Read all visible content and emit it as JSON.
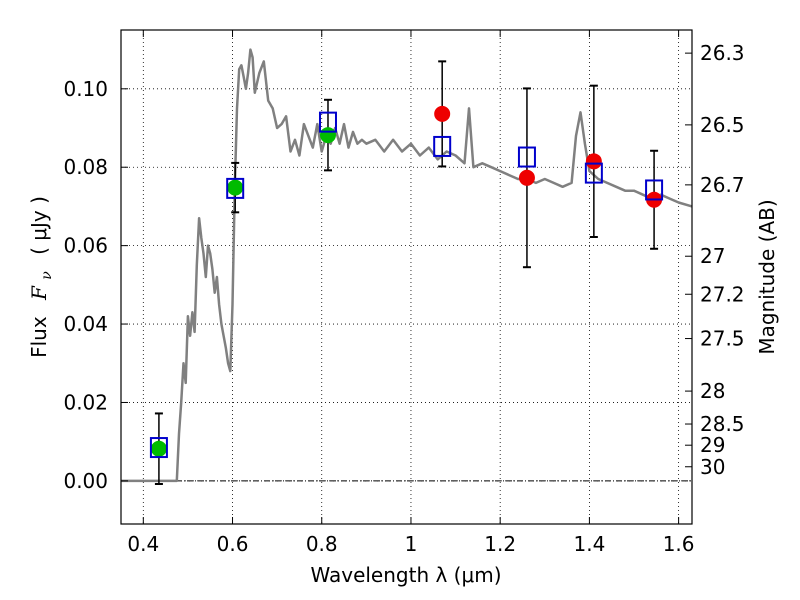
{
  "chart_data": {
    "type": "scatter",
    "xlabel": "Wavelength  λ (μm)",
    "ylabel_text": "Flux",
    "ylabel_math": "F",
    "ylabel_sub": "ν",
    "ylabel_unit": "( μJy )",
    "y2label": "Magnitude (AB)",
    "xlim": [
      0.35,
      1.63
    ],
    "ylim": [
      -0.011,
      0.115
    ],
    "grid": true,
    "x_ticks": [
      0.4,
      0.6,
      0.8,
      1.0,
      1.2,
      1.4,
      1.6
    ],
    "x_tick_labels": [
      "0.4",
      "0.6",
      "0.8",
      "1",
      "1.2",
      "1.4",
      "1.6"
    ],
    "y_ticks": [
      0.0,
      0.02,
      0.04,
      0.06,
      0.08,
      0.1
    ],
    "y_tick_labels": [
      "0.00",
      "0.02",
      "0.04",
      "0.06",
      "0.08",
      "0.10"
    ],
    "mag_ticks": [
      {
        "label": "26.3",
        "flux": 0.1091
      },
      {
        "label": "26.5",
        "flux": 0.0908
      },
      {
        "label": "26.7",
        "flux": 0.0755
      },
      {
        "label": "27",
        "flux": 0.0573
      },
      {
        "label": "27.2",
        "flux": 0.0476
      },
      {
        "label": "27.5",
        "flux": 0.0363
      },
      {
        "label": "28",
        "flux": 0.0229
      },
      {
        "label": "28.5",
        "flux": 0.0145
      },
      {
        "label": "29",
        "flux": 0.0091
      },
      {
        "label": "30",
        "flux": 0.0036
      }
    ],
    "colors": {
      "model": "#808080",
      "photometry_green": "#00bb00",
      "photometry_red": "#ee0000",
      "model_points": "#0000cc",
      "errorbar": "#000000",
      "zero_line": "#000000"
    },
    "model_spectrum": {
      "x": [
        0.35,
        0.4,
        0.43,
        0.44,
        0.45,
        0.46,
        0.47,
        0.475,
        0.48,
        0.485,
        0.49,
        0.495,
        0.5,
        0.505,
        0.51,
        0.515,
        0.52,
        0.525,
        0.53,
        0.535,
        0.54,
        0.545,
        0.55,
        0.555,
        0.56,
        0.565,
        0.57,
        0.575,
        0.58,
        0.585,
        0.59,
        0.595,
        0.6,
        0.605,
        0.61,
        0.615,
        0.62,
        0.625,
        0.63,
        0.635,
        0.64,
        0.645,
        0.65,
        0.66,
        0.67,
        0.68,
        0.69,
        0.7,
        0.71,
        0.72,
        0.73,
        0.74,
        0.75,
        0.76,
        0.77,
        0.78,
        0.79,
        0.8,
        0.81,
        0.82,
        0.83,
        0.84,
        0.85,
        0.86,
        0.87,
        0.88,
        0.89,
        0.9,
        0.92,
        0.94,
        0.96,
        0.98,
        1.0,
        1.02,
        1.04,
        1.06,
        1.08,
        1.1,
        1.12,
        1.13,
        1.14,
        1.16,
        1.18,
        1.2,
        1.22,
        1.24,
        1.26,
        1.28,
        1.3,
        1.32,
        1.34,
        1.36,
        1.37,
        1.38,
        1.39,
        1.4,
        1.42,
        1.44,
        1.46,
        1.48,
        1.5,
        1.52,
        1.54,
        1.56,
        1.58,
        1.6,
        1.63
      ],
      "y": [
        0.0,
        0.0,
        0.0,
        0.0,
        0.0,
        0.0,
        0.0,
        0.0,
        0.012,
        0.02,
        0.03,
        0.025,
        0.042,
        0.037,
        0.043,
        0.038,
        0.055,
        0.067,
        0.062,
        0.058,
        0.052,
        0.06,
        0.058,
        0.054,
        0.048,
        0.052,
        0.045,
        0.04,
        0.037,
        0.034,
        0.03,
        0.028,
        0.045,
        0.075,
        0.095,
        0.105,
        0.106,
        0.103,
        0.1,
        0.104,
        0.11,
        0.108,
        0.099,
        0.104,
        0.107,
        0.097,
        0.095,
        0.09,
        0.091,
        0.093,
        0.084,
        0.087,
        0.083,
        0.091,
        0.088,
        0.085,
        0.091,
        0.084,
        0.088,
        0.086,
        0.09,
        0.086,
        0.091,
        0.085,
        0.089,
        0.086,
        0.087,
        0.086,
        0.087,
        0.084,
        0.087,
        0.084,
        0.086,
        0.083,
        0.085,
        0.082,
        0.084,
        0.083,
        0.081,
        0.095,
        0.08,
        0.081,
        0.08,
        0.079,
        0.078,
        0.077,
        0.077,
        0.076,
        0.077,
        0.076,
        0.075,
        0.076,
        0.088,
        0.094,
        0.086,
        0.079,
        0.077,
        0.076,
        0.075,
        0.074,
        0.074,
        0.073,
        0.072,
        0.073,
        0.072,
        0.071,
        0.07
      ]
    },
    "photometry": [
      {
        "x": 0.435,
        "y": 0.0082,
        "err": 0.009,
        "color": "green"
      },
      {
        "x": 0.606,
        "y": 0.0748,
        "err": 0.0063,
        "color": "green"
      },
      {
        "x": 0.814,
        "y": 0.0882,
        "err": 0.009,
        "color": "green"
      },
      {
        "x": 1.07,
        "y": 0.0936,
        "err": 0.0134,
        "color": "red"
      },
      {
        "x": 1.26,
        "y": 0.0773,
        "err": 0.0228,
        "color": "red"
      },
      {
        "x": 1.41,
        "y": 0.0815,
        "err": 0.0193,
        "color": "red"
      },
      {
        "x": 1.545,
        "y": 0.0717,
        "err": 0.0125,
        "color": "red"
      }
    ],
    "model_points": [
      {
        "x": 0.435,
        "y": 0.0085
      },
      {
        "x": 0.606,
        "y": 0.0746
      },
      {
        "x": 0.814,
        "y": 0.0915
      },
      {
        "x": 1.07,
        "y": 0.0853
      },
      {
        "x": 1.26,
        "y": 0.0826
      },
      {
        "x": 1.41,
        "y": 0.0785
      },
      {
        "x": 1.545,
        "y": 0.0742
      }
    ]
  }
}
